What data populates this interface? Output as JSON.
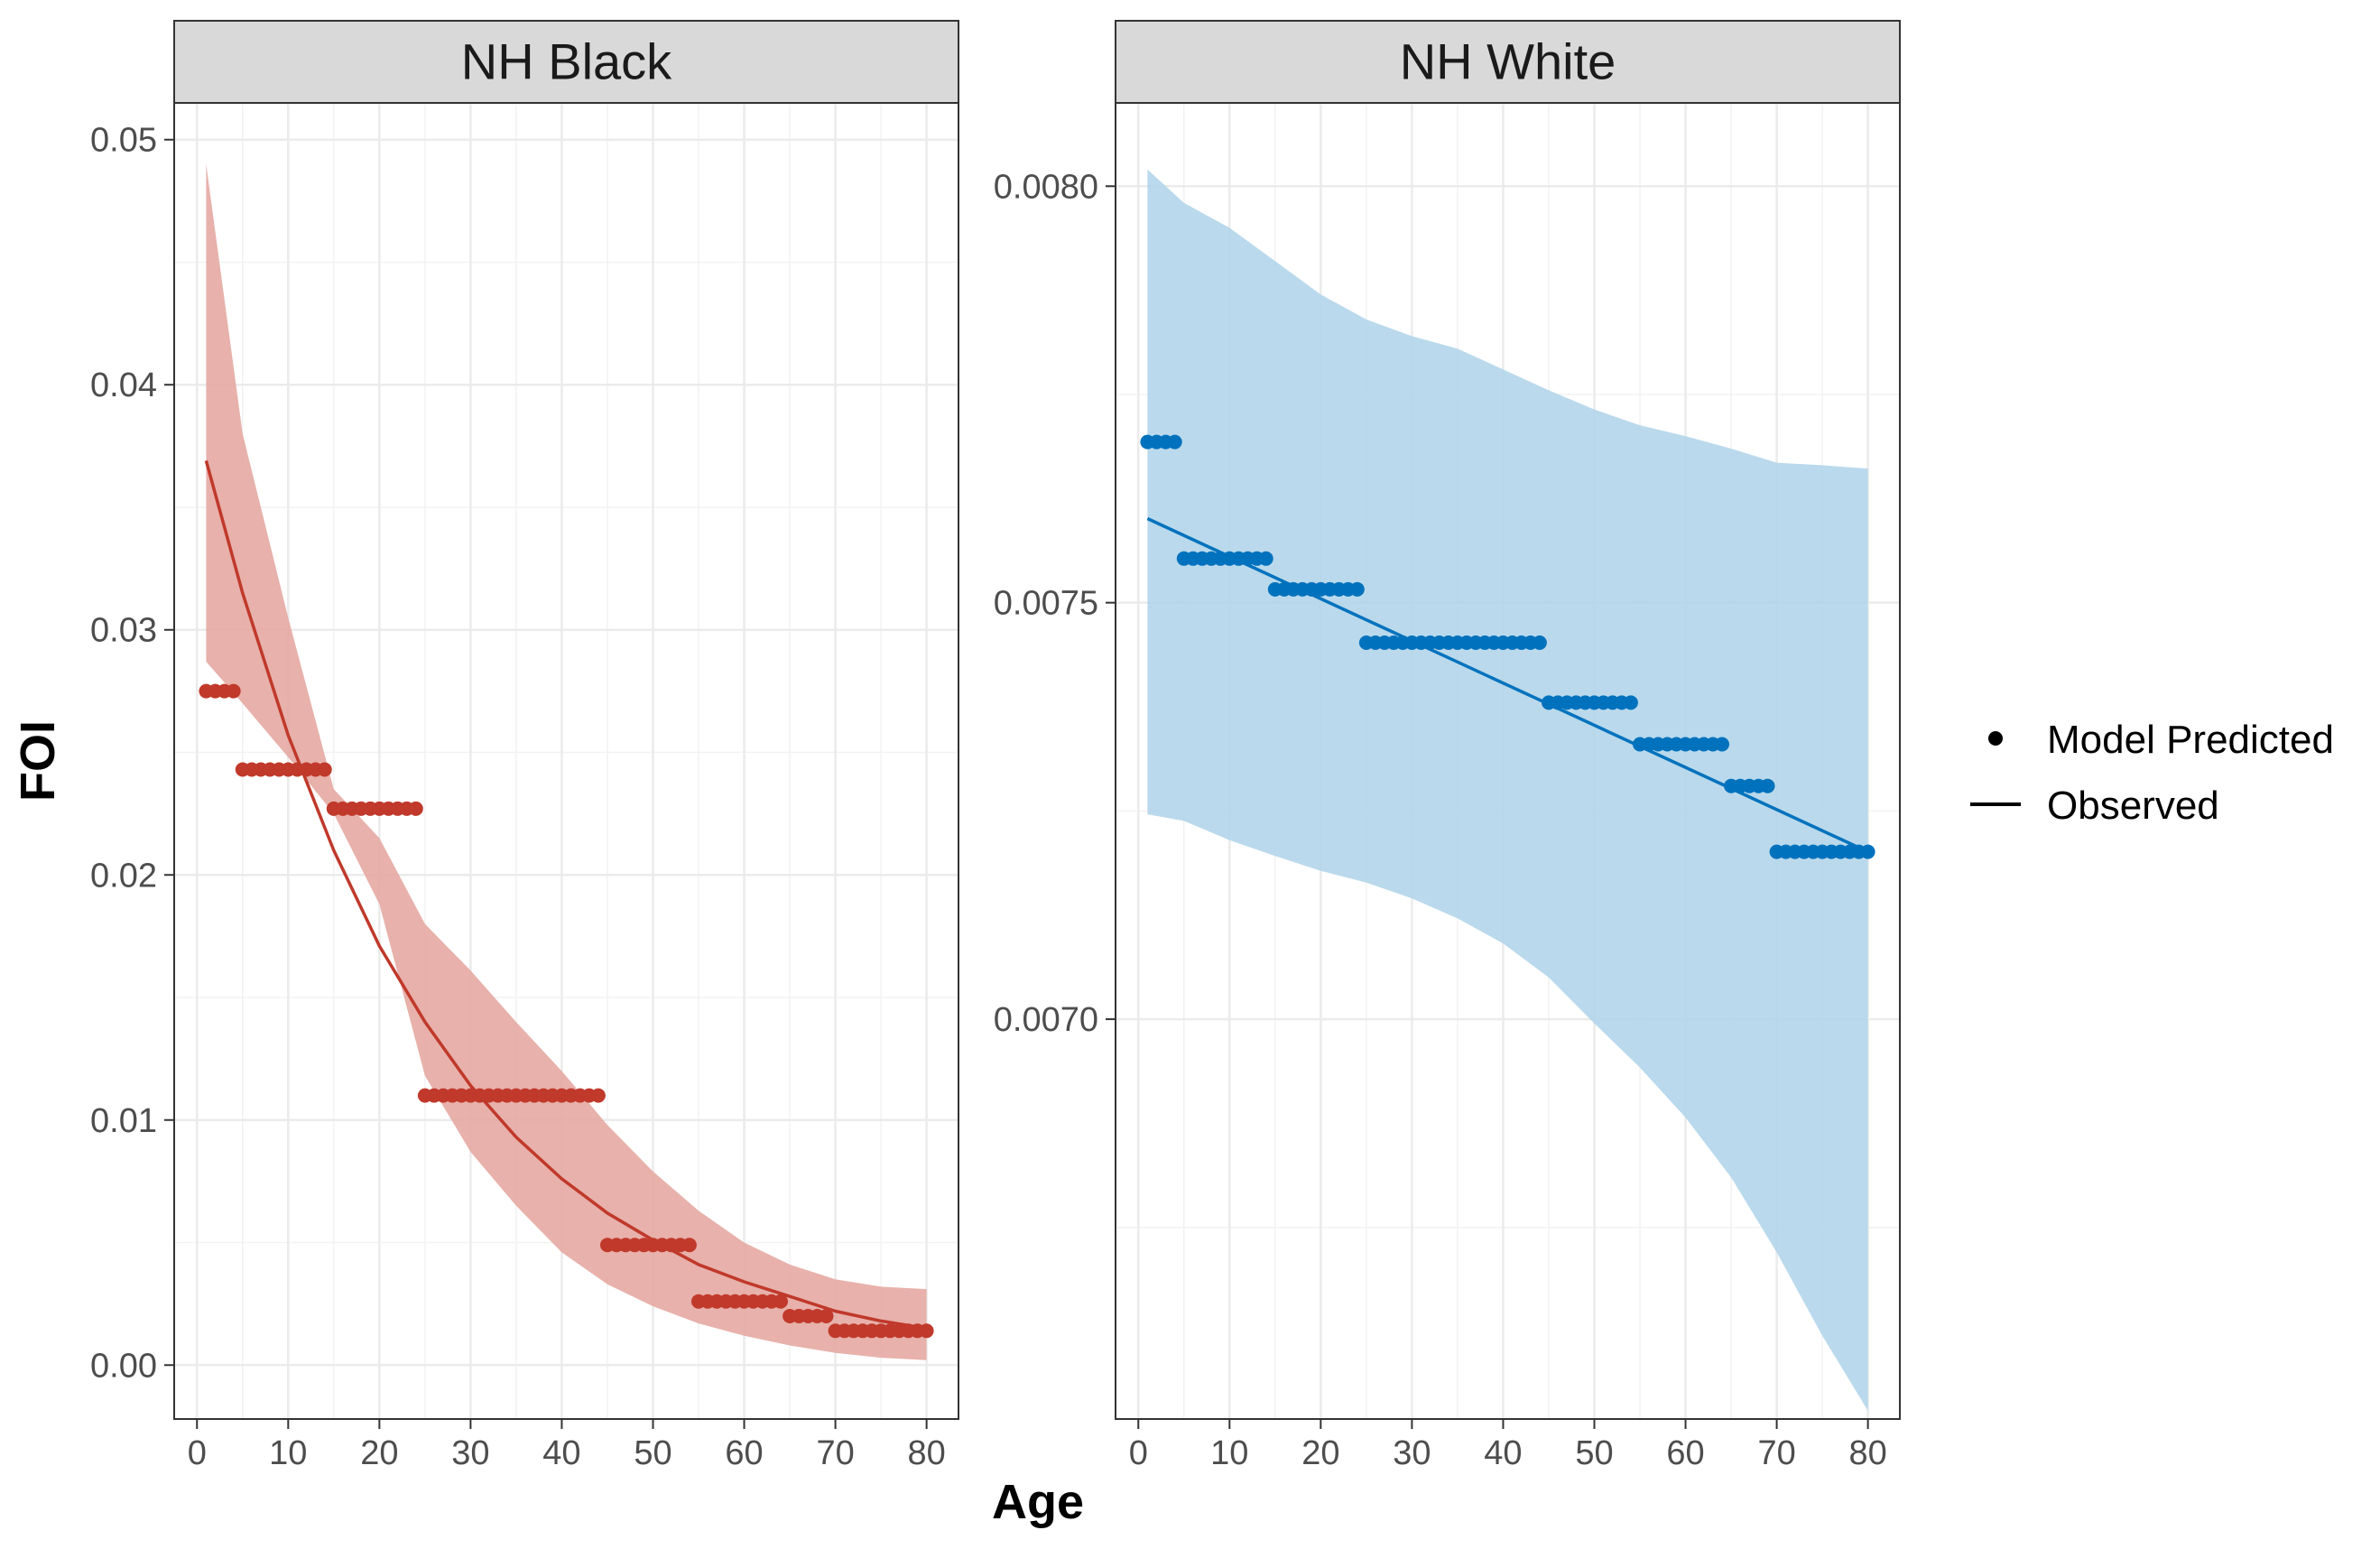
{
  "chart_data": {
    "type": "line",
    "xlabel": "Age",
    "ylabel": "FOI",
    "legend": {
      "placement": "right",
      "entries": [
        {
          "label": "Model Predicted",
          "symbol": "point"
        },
        {
          "label": "Observed",
          "symbol": "line"
        }
      ]
    },
    "grid": true,
    "panels": [
      {
        "strip_title": "NH Black",
        "color": "#c0392b",
        "ribbon_color": "#e6a8a2",
        "xlim": [
          -2.5,
          83.5
        ],
        "ylim": [
          -0.0022,
          0.0515
        ],
        "x_ticks": [
          0,
          10,
          20,
          30,
          40,
          50,
          60,
          70,
          80
        ],
        "y_ticks": [
          0.0,
          0.01,
          0.02,
          0.03,
          0.04,
          0.05
        ],
        "y_tick_labels": [
          "0.00",
          "0.01",
          "0.02",
          "0.03",
          "0.04",
          "0.05"
        ],
        "observed": {
          "x": [
            1,
            5,
            10,
            15,
            20,
            25,
            30,
            35,
            40,
            45,
            50,
            55,
            60,
            65,
            70,
            75,
            80
          ],
          "y": [
            0.0369,
            0.0315,
            0.0257,
            0.021,
            0.0171,
            0.014,
            0.0114,
            0.0093,
            0.0076,
            0.0062,
            0.0051,
            0.0041,
            0.0034,
            0.0028,
            0.0022,
            0.0018,
            0.0015
          ]
        },
        "ribbon": {
          "x": [
            1,
            5,
            10,
            15,
            20,
            25,
            30,
            35,
            40,
            45,
            50,
            55,
            60,
            65,
            70,
            75,
            80
          ],
          "lower": [
            0.0287,
            0.027,
            0.0248,
            0.0225,
            0.0188,
            0.0118,
            0.0087,
            0.0065,
            0.0046,
            0.0033,
            0.0024,
            0.0017,
            0.0012,
            0.0008,
            0.0005,
            0.0003,
            0.0002
          ],
          "upper": [
            0.049,
            0.038,
            0.0305,
            0.0235,
            0.0215,
            0.018,
            0.0161,
            0.014,
            0.012,
            0.0098,
            0.0079,
            0.0063,
            0.005,
            0.0041,
            0.0035,
            0.0032,
            0.0031
          ]
        },
        "predicted_steps": [
          {
            "from": 1,
            "to": 4,
            "y": 0.0275
          },
          {
            "from": 5,
            "to": 14,
            "y": 0.0243
          },
          {
            "from": 15,
            "to": 24,
            "y": 0.0227
          },
          {
            "from": 25,
            "to": 44,
            "y": 0.011
          },
          {
            "from": 45,
            "to": 54,
            "y": 0.0049
          },
          {
            "from": 55,
            "to": 64,
            "y": 0.0026
          },
          {
            "from": 65,
            "to": 69,
            "y": 0.002
          },
          {
            "from": 70,
            "to": 80,
            "y": 0.0014
          }
        ]
      },
      {
        "strip_title": "NH White",
        "color": "#0072bd",
        "ribbon_color": "#b3d5ea",
        "xlim": [
          -2.5,
          83.5
        ],
        "ylim": [
          0.00652,
          0.0081
        ],
        "x_ticks": [
          0,
          10,
          20,
          30,
          40,
          50,
          60,
          70,
          80
        ],
        "y_ticks": [
          0.007,
          0.0075,
          0.008
        ],
        "y_tick_labels": [
          "0.0070",
          "0.0075",
          "0.0080"
        ],
        "observed": {
          "x": [
            1,
            80
          ],
          "y": [
            0.007601,
            0.007201
          ]
        },
        "ribbon": {
          "x": [
            1,
            5,
            10,
            15,
            20,
            25,
            30,
            35,
            40,
            45,
            50,
            55,
            60,
            65,
            70,
            75,
            80
          ],
          "lower": [
            0.007246,
            0.007238,
            0.007215,
            0.007196,
            0.007178,
            0.007164,
            0.007145,
            0.007121,
            0.007091,
            0.00705,
            0.006995,
            0.006942,
            0.006882,
            0.00681,
            0.00672,
            0.00662,
            0.00653
          ],
          "upper": [
            0.00802,
            0.00798,
            0.00795,
            0.00791,
            0.00787,
            0.00784,
            0.00782,
            0.007805,
            0.00778,
            0.007755,
            0.007732,
            0.007713,
            0.0077,
            0.007685,
            0.007668,
            0.007665,
            0.007661
          ]
        },
        "predicted_steps": [
          {
            "from": 1,
            "to": 4,
            "y": 0.007693
          },
          {
            "from": 5,
            "to": 14,
            "y": 0.007553
          },
          {
            "from": 15,
            "to": 24,
            "y": 0.007516
          },
          {
            "from": 25,
            "to": 44,
            "y": 0.007452
          },
          {
            "from": 45,
            "to": 54,
            "y": 0.00738
          },
          {
            "from": 55,
            "to": 64,
            "y": 0.00733
          },
          {
            "from": 65,
            "to": 69,
            "y": 0.00728
          },
          {
            "from": 70,
            "to": 80,
            "y": 0.007201
          }
        ]
      }
    ]
  }
}
